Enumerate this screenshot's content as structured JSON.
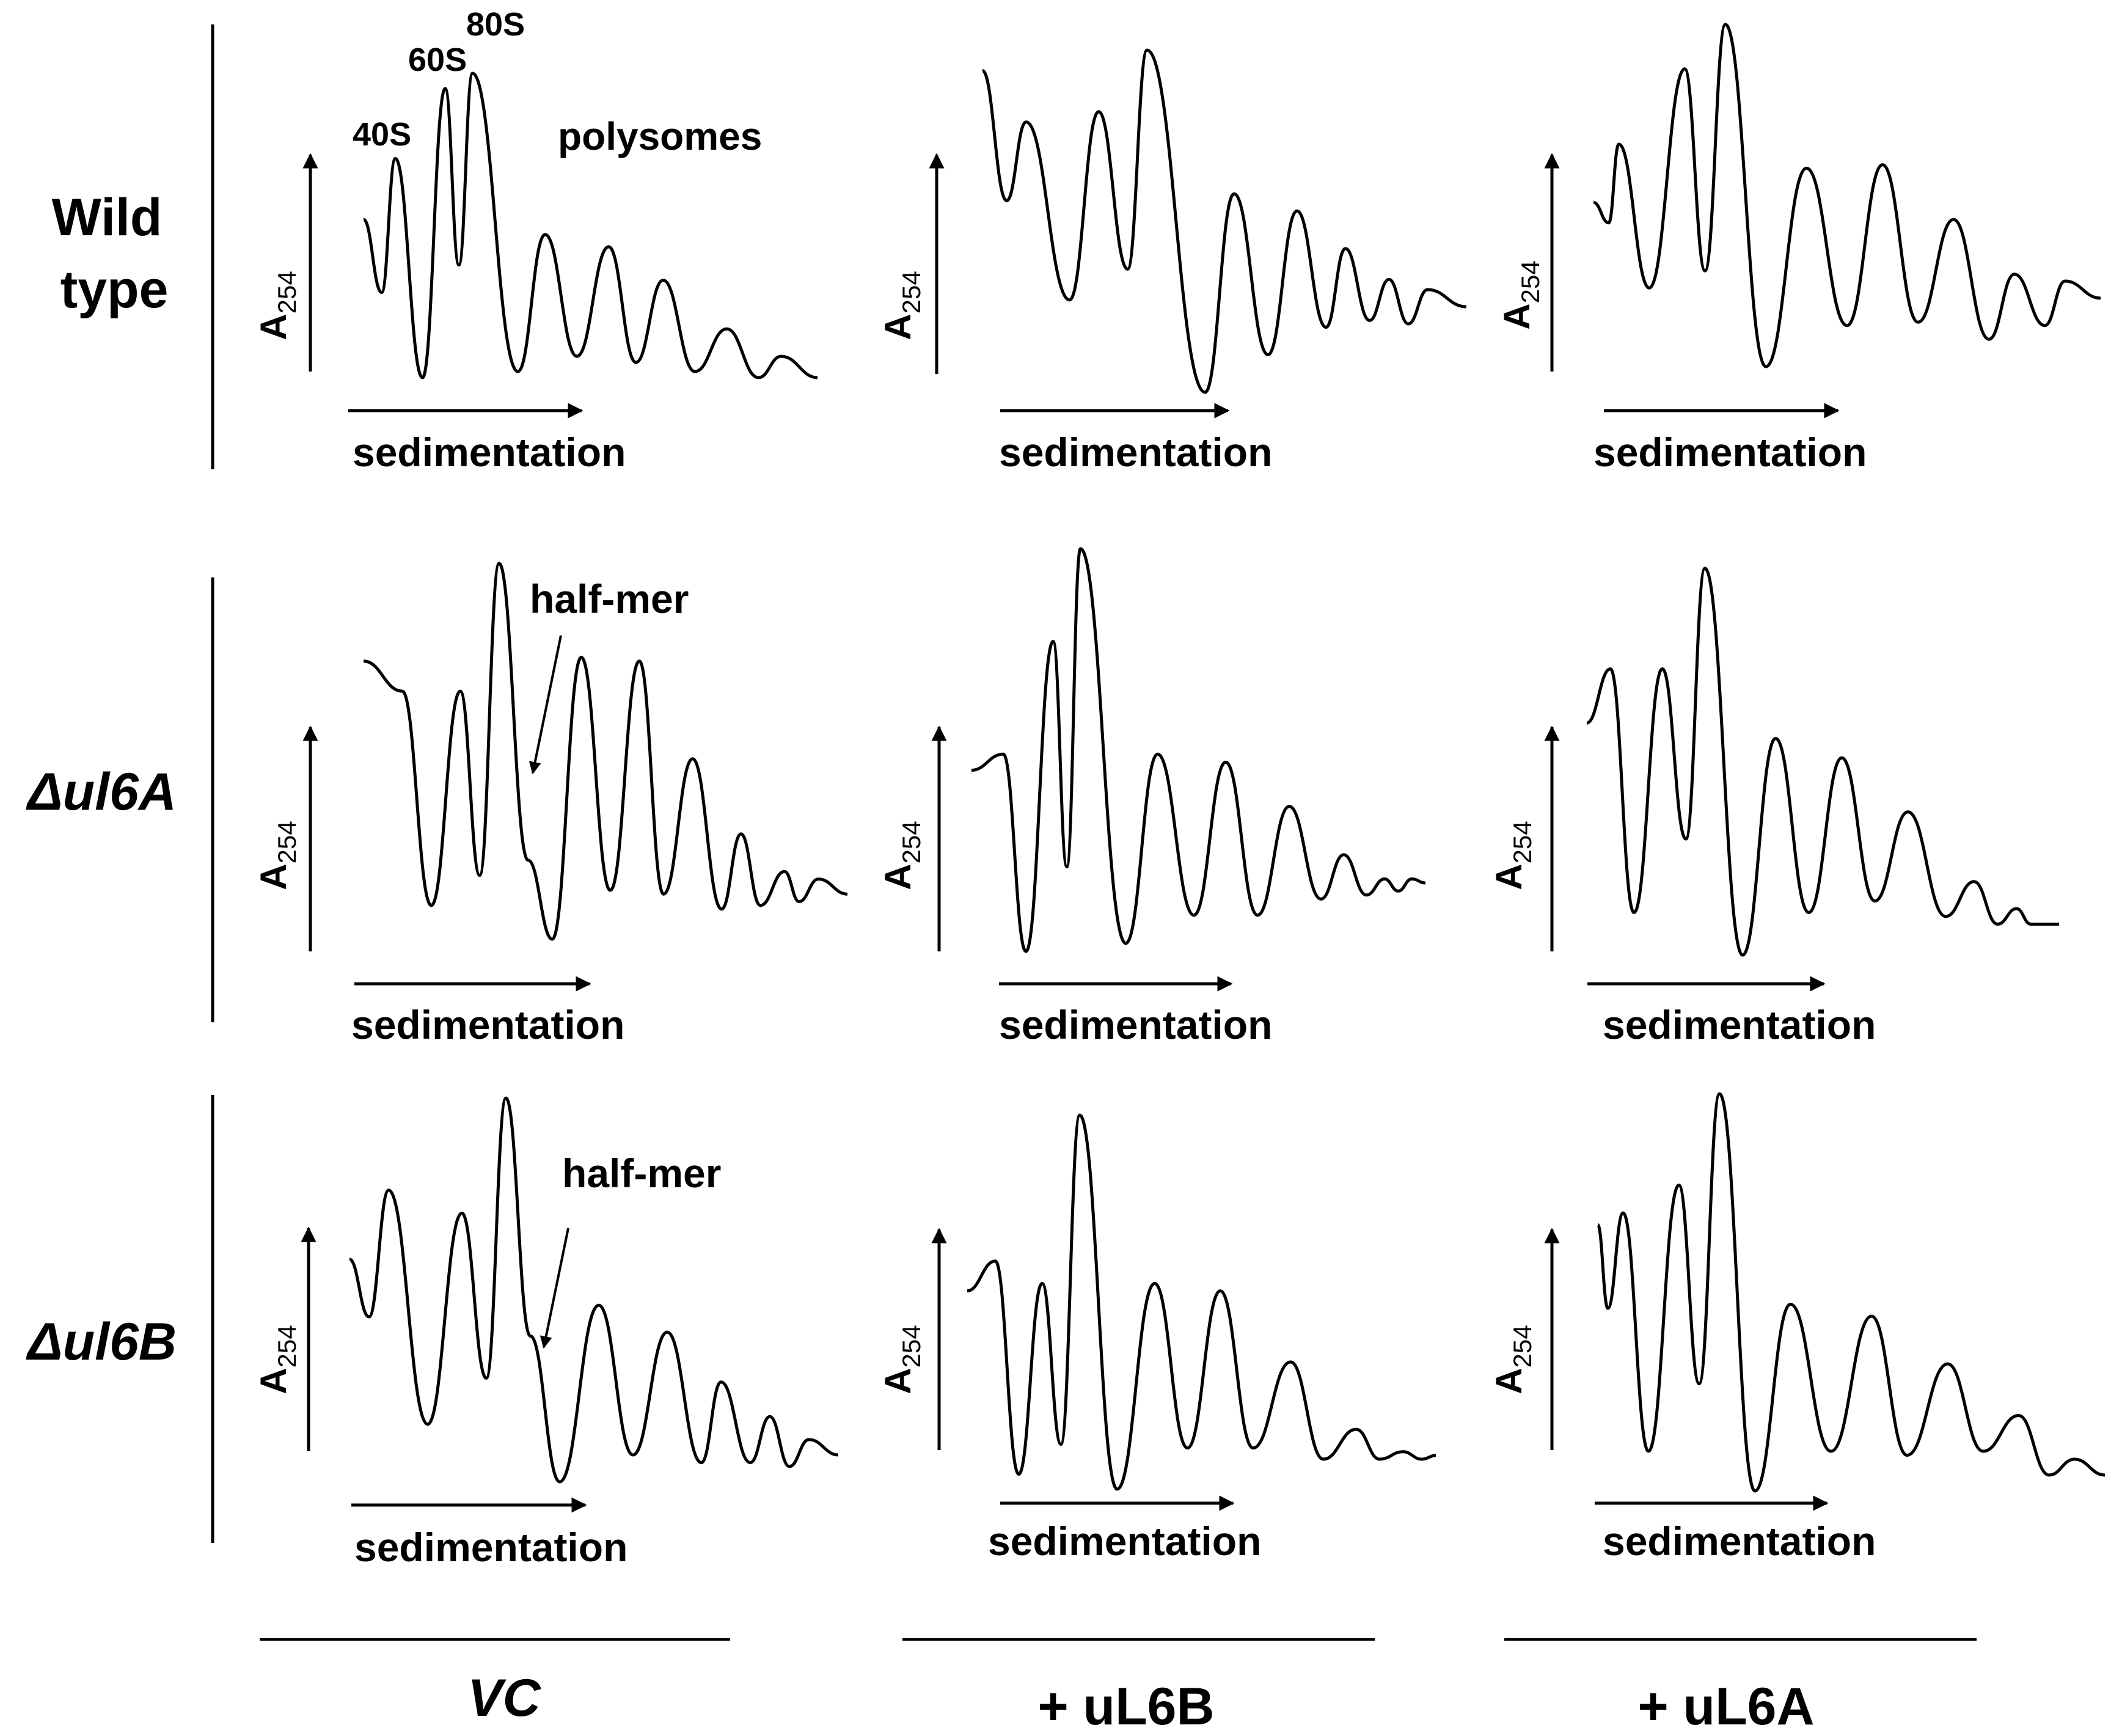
{
  "figure": {
    "rows": [
      {
        "label_lines": [
          "Wild",
          "type"
        ],
        "italic": false
      },
      {
        "label_lines": [
          "Δul6A"
        ],
        "italic": true
      },
      {
        "label_lines": [
          "Δul6B"
        ],
        "italic": true
      }
    ],
    "columns": [
      {
        "label": "VC",
        "italic": true
      },
      {
        "label": "+ uL6B",
        "italic": false
      },
      {
        "label": "+ uL6A",
        "italic": false
      }
    ],
    "y_label": "A",
    "y_label_sub": "254",
    "x_label": "sedimentation",
    "peak_labels": {
      "p40S": "40S",
      "p60S": "60S",
      "p80S": "80S",
      "polysomes": "polysomes"
    },
    "annotation": "half-mer",
    "colors": {
      "line": "#000000",
      "background": "#ffffff"
    }
  },
  "chart_data": [
    {
      "type": "line",
      "row": "Wild type",
      "column": "VC",
      "xlabel": "sedimentation",
      "ylabel": "A254",
      "peaks": [
        {
          "x": 0.07,
          "y": 0.72
        },
        {
          "x": 0.18,
          "y": 0.95
        },
        {
          "x": 0.24,
          "y": 1.0
        },
        {
          "x": 0.4,
          "y": 0.47
        },
        {
          "x": 0.54,
          "y": 0.43
        },
        {
          "x": 0.66,
          "y": 0.32
        },
        {
          "x": 0.8,
          "y": 0.16
        },
        {
          "x": 0.92,
          "y": 0.07
        }
      ],
      "valleys": [
        {
          "x": 0.0,
          "y": 0.52
        },
        {
          "x": 0.04,
          "y": 0.28
        },
        {
          "x": 0.13,
          "y": 0.0
        },
        {
          "x": 0.21,
          "y": 0.37
        },
        {
          "x": 0.34,
          "y": 0.02
        },
        {
          "x": 0.47,
          "y": 0.07
        },
        {
          "x": 0.6,
          "y": 0.05
        },
        {
          "x": 0.73,
          "y": 0.02
        },
        {
          "x": 0.87,
          "y": 0.0
        },
        {
          "x": 1.0,
          "y": 0.0
        }
      ]
    },
    {
      "type": "line",
      "row": "Wild type",
      "column": "+ uL6B",
      "xlabel": "sedimentation",
      "ylabel": "A254",
      "peaks": [
        {
          "x": 0.09,
          "y": 0.79
        },
        {
          "x": 0.24,
          "y": 0.82
        },
        {
          "x": 0.34,
          "y": 1.0
        },
        {
          "x": 0.52,
          "y": 0.58
        },
        {
          "x": 0.65,
          "y": 0.53
        },
        {
          "x": 0.75,
          "y": 0.42
        },
        {
          "x": 0.84,
          "y": 0.33
        },
        {
          "x": 0.92,
          "y": 0.3
        }
      ],
      "valleys": [
        {
          "x": 0.0,
          "y": 0.94
        },
        {
          "x": 0.05,
          "y": 0.56
        },
        {
          "x": 0.18,
          "y": 0.27
        },
        {
          "x": 0.3,
          "y": 0.36
        },
        {
          "x": 0.46,
          "y": 0.0
        },
        {
          "x": 0.59,
          "y": 0.11
        },
        {
          "x": 0.71,
          "y": 0.19
        },
        {
          "x": 0.8,
          "y": 0.21
        },
        {
          "x": 0.88,
          "y": 0.2
        },
        {
          "x": 1.0,
          "y": 0.25
        }
      ]
    },
    {
      "type": "line",
      "row": "Wild type",
      "column": "+ uL6A",
      "xlabel": "sedimentation",
      "ylabel": "A254",
      "peaks": [
        {
          "x": 0.05,
          "y": 0.65
        },
        {
          "x": 0.18,
          "y": 0.87
        },
        {
          "x": 0.26,
          "y": 1.0
        },
        {
          "x": 0.42,
          "y": 0.58
        },
        {
          "x": 0.57,
          "y": 0.59
        },
        {
          "x": 0.71,
          "y": 0.43
        },
        {
          "x": 0.83,
          "y": 0.27
        },
        {
          "x": 0.93,
          "y": 0.25
        }
      ],
      "valleys": [
        {
          "x": 0.0,
          "y": 0.48
        },
        {
          "x": 0.03,
          "y": 0.42
        },
        {
          "x": 0.11,
          "y": 0.23
        },
        {
          "x": 0.22,
          "y": 0.28
        },
        {
          "x": 0.34,
          "y": 0.0
        },
        {
          "x": 0.5,
          "y": 0.12
        },
        {
          "x": 0.64,
          "y": 0.13
        },
        {
          "x": 0.78,
          "y": 0.08
        },
        {
          "x": 0.89,
          "y": 0.12
        },
        {
          "x": 1.0,
          "y": 0.2
        }
      ]
    },
    {
      "type": "line",
      "row": "Δul6A",
      "column": "VC",
      "xlabel": "sedimentation",
      "ylabel": "A254",
      "annotation": "half-mer",
      "peaks": [
        {
          "x": 0.08,
          "y": 0.66
        },
        {
          "x": 0.2,
          "y": 0.66
        },
        {
          "x": 0.28,
          "y": 1.0
        },
        {
          "x": 0.45,
          "y": 0.75
        },
        {
          "x": 0.57,
          "y": 0.74
        },
        {
          "x": 0.68,
          "y": 0.48
        },
        {
          "x": 0.78,
          "y": 0.28
        },
        {
          "x": 0.87,
          "y": 0.18
        },
        {
          "x": 0.94,
          "y": 0.16
        }
      ],
      "shoulder": {
        "x": 0.34,
        "y": 0.21
      },
      "valleys": [
        {
          "x": 0.0,
          "y": 0.74
        },
        {
          "x": 0.14,
          "y": 0.09
        },
        {
          "x": 0.24,
          "y": 0.17
        },
        {
          "x": 0.39,
          "y": 0.0
        },
        {
          "x": 0.51,
          "y": 0.13
        },
        {
          "x": 0.62,
          "y": 0.12
        },
        {
          "x": 0.74,
          "y": 0.08
        },
        {
          "x": 0.82,
          "y": 0.09
        },
        {
          "x": 0.9,
          "y": 0.1
        },
        {
          "x": 1.0,
          "y": 0.12
        }
      ]
    },
    {
      "type": "line",
      "row": "Δul6A",
      "column": "+ uL6B",
      "xlabel": "sedimentation",
      "ylabel": "A254",
      "peaks": [
        {
          "x": 0.07,
          "y": 0.49
        },
        {
          "x": 0.18,
          "y": 0.77
        },
        {
          "x": 0.24,
          "y": 1.0
        },
        {
          "x": 0.41,
          "y": 0.49
        },
        {
          "x": 0.56,
          "y": 0.47
        },
        {
          "x": 0.7,
          "y": 0.36
        },
        {
          "x": 0.82,
          "y": 0.24
        },
        {
          "x": 0.91,
          "y": 0.18
        },
        {
          "x": 0.97,
          "y": 0.18
        }
      ],
      "valleys": [
        {
          "x": 0.0,
          "y": 0.45
        },
        {
          "x": 0.12,
          "y": 0.0
        },
        {
          "x": 0.21,
          "y": 0.21
        },
        {
          "x": 0.34,
          "y": 0.02
        },
        {
          "x": 0.49,
          "y": 0.09
        },
        {
          "x": 0.63,
          "y": 0.09
        },
        {
          "x": 0.77,
          "y": 0.13
        },
        {
          "x": 0.87,
          "y": 0.14
        },
        {
          "x": 0.94,
          "y": 0.15
        },
        {
          "x": 1.0,
          "y": 0.17
        }
      ]
    },
    {
      "type": "line",
      "row": "Δul6A",
      "column": "+ uL6A",
      "xlabel": "sedimentation",
      "ylabel": "A254",
      "peaks": [
        {
          "x": 0.05,
          "y": 0.74
        },
        {
          "x": 0.16,
          "y": 0.74
        },
        {
          "x": 0.25,
          "y": 1.0
        },
        {
          "x": 0.4,
          "y": 0.56
        },
        {
          "x": 0.54,
          "y": 0.51
        },
        {
          "x": 0.68,
          "y": 0.37
        },
        {
          "x": 0.82,
          "y": 0.19
        },
        {
          "x": 0.91,
          "y": 0.12
        }
      ],
      "valleys": [
        {
          "x": 0.0,
          "y": 0.6
        },
        {
          "x": 0.1,
          "y": 0.11
        },
        {
          "x": 0.21,
          "y": 0.3
        },
        {
          "x": 0.33,
          "y": 0.0
        },
        {
          "x": 0.47,
          "y": 0.11
        },
        {
          "x": 0.61,
          "y": 0.14
        },
        {
          "x": 0.76,
          "y": 0.1
        },
        {
          "x": 0.87,
          "y": 0.08
        },
        {
          "x": 0.94,
          "y": 0.08
        },
        {
          "x": 1.0,
          "y": 0.08
        }
      ]
    },
    {
      "type": "line",
      "row": "Δul6B",
      "column": "VC",
      "xlabel": "sedimentation",
      "ylabel": "A254",
      "annotation": "half-mer",
      "peaks": [
        {
          "x": 0.08,
          "y": 0.76
        },
        {
          "x": 0.23,
          "y": 0.7
        },
        {
          "x": 0.32,
          "y": 1.0
        },
        {
          "x": 0.51,
          "y": 0.46
        },
        {
          "x": 0.65,
          "y": 0.39
        },
        {
          "x": 0.76,
          "y": 0.26
        },
        {
          "x": 0.86,
          "y": 0.17
        },
        {
          "x": 0.94,
          "y": 0.11
        }
      ],
      "shoulder": {
        "x": 0.37,
        "y": 0.38
      },
      "valleys": [
        {
          "x": 0.0,
          "y": 0.58
        },
        {
          "x": 0.04,
          "y": 0.43
        },
        {
          "x": 0.16,
          "y": 0.15
        },
        {
          "x": 0.28,
          "y": 0.27
        },
        {
          "x": 0.43,
          "y": 0.0
        },
        {
          "x": 0.58,
          "y": 0.07
        },
        {
          "x": 0.72,
          "y": 0.05
        },
        {
          "x": 0.82,
          "y": 0.05
        },
        {
          "x": 0.9,
          "y": 0.04
        },
        {
          "x": 1.0,
          "y": 0.07
        }
      ]
    },
    {
      "type": "line",
      "row": "Δul6B",
      "column": "+ uL6B",
      "xlabel": "sedimentation",
      "ylabel": "A254",
      "peaks": [
        {
          "x": 0.06,
          "y": 0.61
        },
        {
          "x": 0.16,
          "y": 0.55
        },
        {
          "x": 0.24,
          "y": 1.0
        },
        {
          "x": 0.4,
          "y": 0.55
        },
        {
          "x": 0.54,
          "y": 0.53
        },
        {
          "x": 0.69,
          "y": 0.34
        },
        {
          "x": 0.83,
          "y": 0.16
        },
        {
          "x": 0.93,
          "y": 0.1
        }
      ],
      "valleys": [
        {
          "x": 0.0,
          "y": 0.53
        },
        {
          "x": 0.11,
          "y": 0.04
        },
        {
          "x": 0.2,
          "y": 0.12
        },
        {
          "x": 0.32,
          "y": 0.0
        },
        {
          "x": 0.47,
          "y": 0.11
        },
        {
          "x": 0.61,
          "y": 0.11
        },
        {
          "x": 0.76,
          "y": 0.08
        },
        {
          "x": 0.88,
          "y": 0.08
        },
        {
          "x": 0.97,
          "y": 0.08
        },
        {
          "x": 1.0,
          "y": 0.09
        }
      ]
    },
    {
      "type": "line",
      "row": "Δul6B",
      "column": "+ uL6A",
      "xlabel": "sedimentation",
      "ylabel": "A254",
      "peaks": [
        {
          "x": 0.05,
          "y": 0.7
        },
        {
          "x": 0.16,
          "y": 0.77
        },
        {
          "x": 0.24,
          "y": 1.0
        },
        {
          "x": 0.38,
          "y": 0.47
        },
        {
          "x": 0.54,
          "y": 0.44
        },
        {
          "x": 0.69,
          "y": 0.32
        },
        {
          "x": 0.83,
          "y": 0.19
        },
        {
          "x": 0.94,
          "y": 0.08
        }
      ],
      "valleys": [
        {
          "x": 0.0,
          "y": 0.67
        },
        {
          "x": 0.02,
          "y": 0.46
        },
        {
          "x": 0.1,
          "y": 0.1
        },
        {
          "x": 0.2,
          "y": 0.27
        },
        {
          "x": 0.31,
          "y": 0.0
        },
        {
          "x": 0.46,
          "y": 0.1
        },
        {
          "x": 0.61,
          "y": 0.09
        },
        {
          "x": 0.76,
          "y": 0.1
        },
        {
          "x": 0.89,
          "y": 0.04
        },
        {
          "x": 1.0,
          "y": 0.04
        }
      ]
    }
  ]
}
